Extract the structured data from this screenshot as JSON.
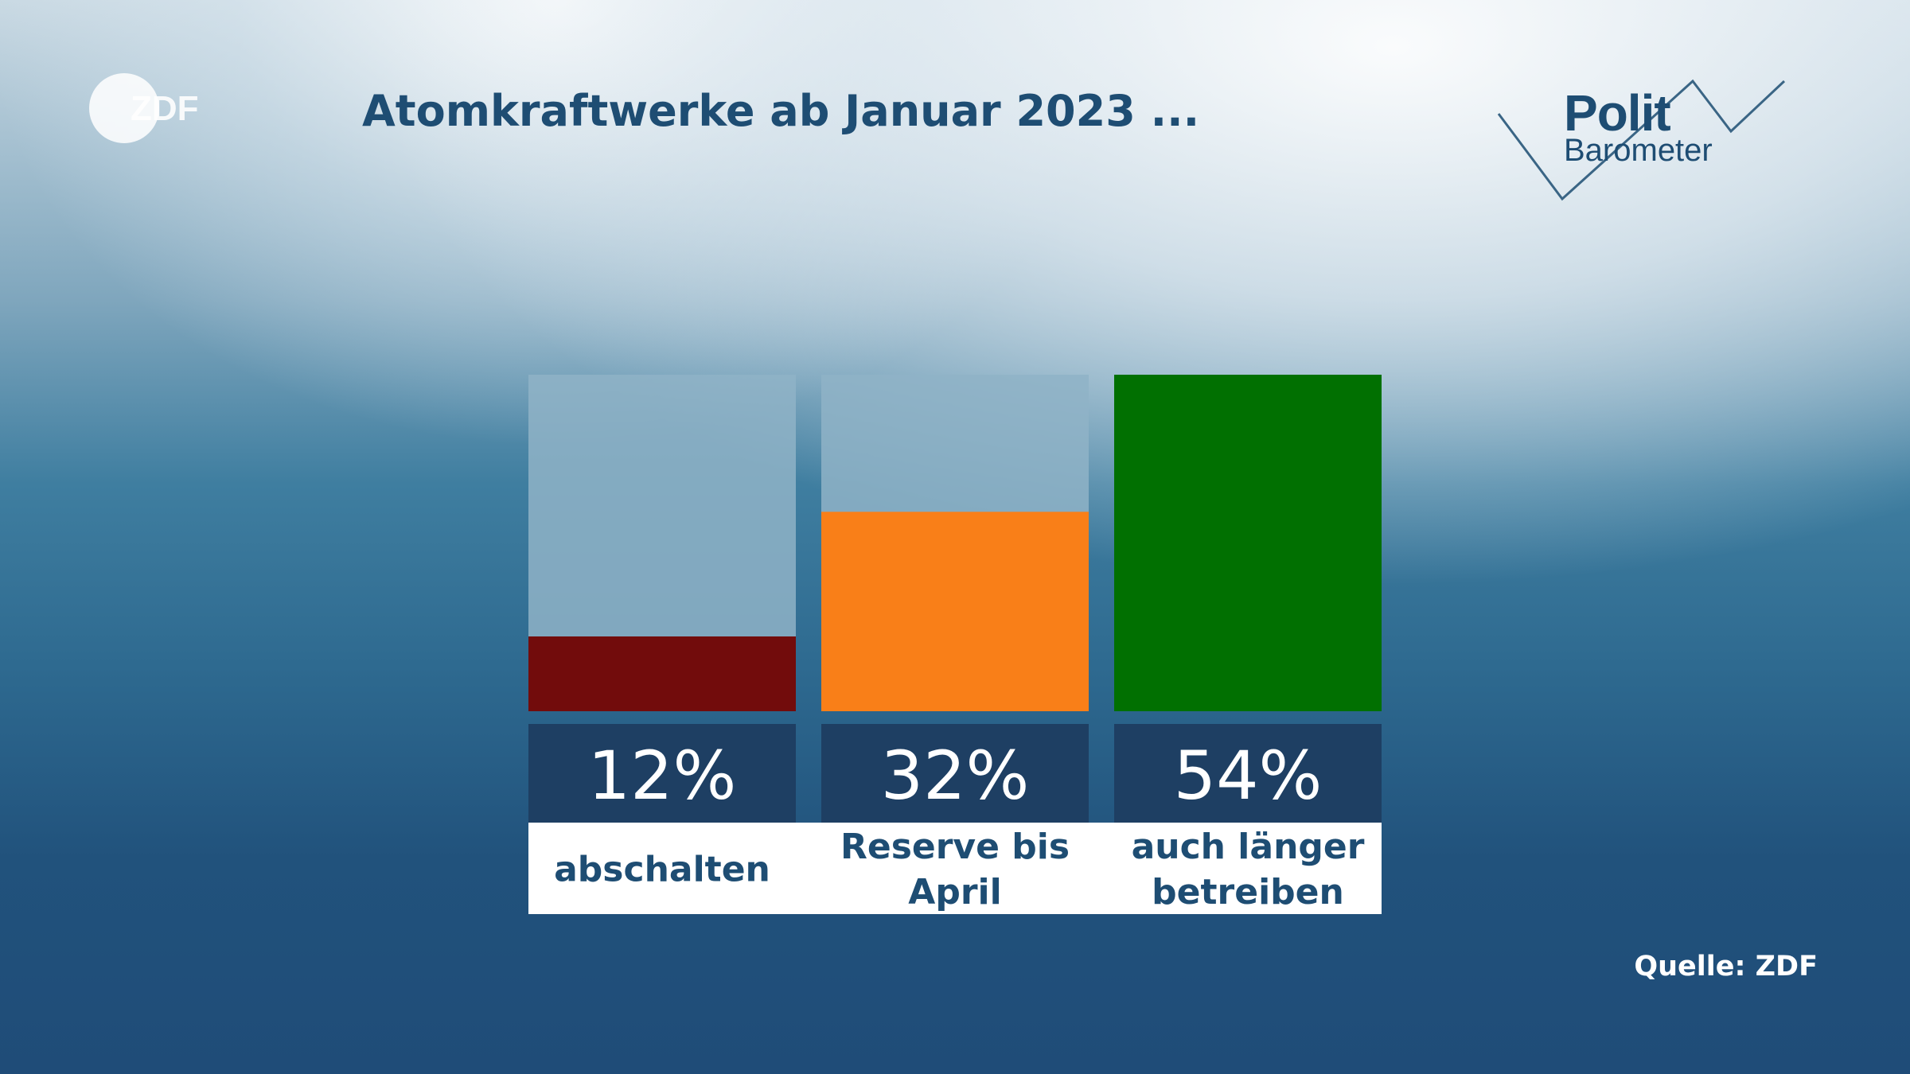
{
  "logo_text": "ZDF",
  "brand": {
    "polit": "Polit",
    "barometer": "Barometer"
  },
  "source": "Quelle: ZDF",
  "colors": {
    "track": "#8fb3c7",
    "label_box": "#1e3f63",
    "label_bg": "#ffffff",
    "text_dark": "#1e4d73"
  },
  "chart_data": {
    "type": "bar",
    "title": "Atomkraftwerke ab Januar 2023 ...",
    "categories": [
      "abschalten",
      "Reserve bis April",
      "auch länger betreiben"
    ],
    "category_lines": [
      [
        "abschalten"
      ],
      [
        "Reserve bis",
        "April"
      ],
      [
        "auch länger",
        "betreiben"
      ]
    ],
    "values": [
      12,
      32,
      54
    ],
    "value_labels": [
      "12%",
      "32%",
      "54%"
    ],
    "colors": [
      "#720c0c",
      "#f97f18",
      "#017001"
    ],
    "ylim": [
      0,
      54
    ],
    "xlabel": "",
    "ylabel": ""
  }
}
